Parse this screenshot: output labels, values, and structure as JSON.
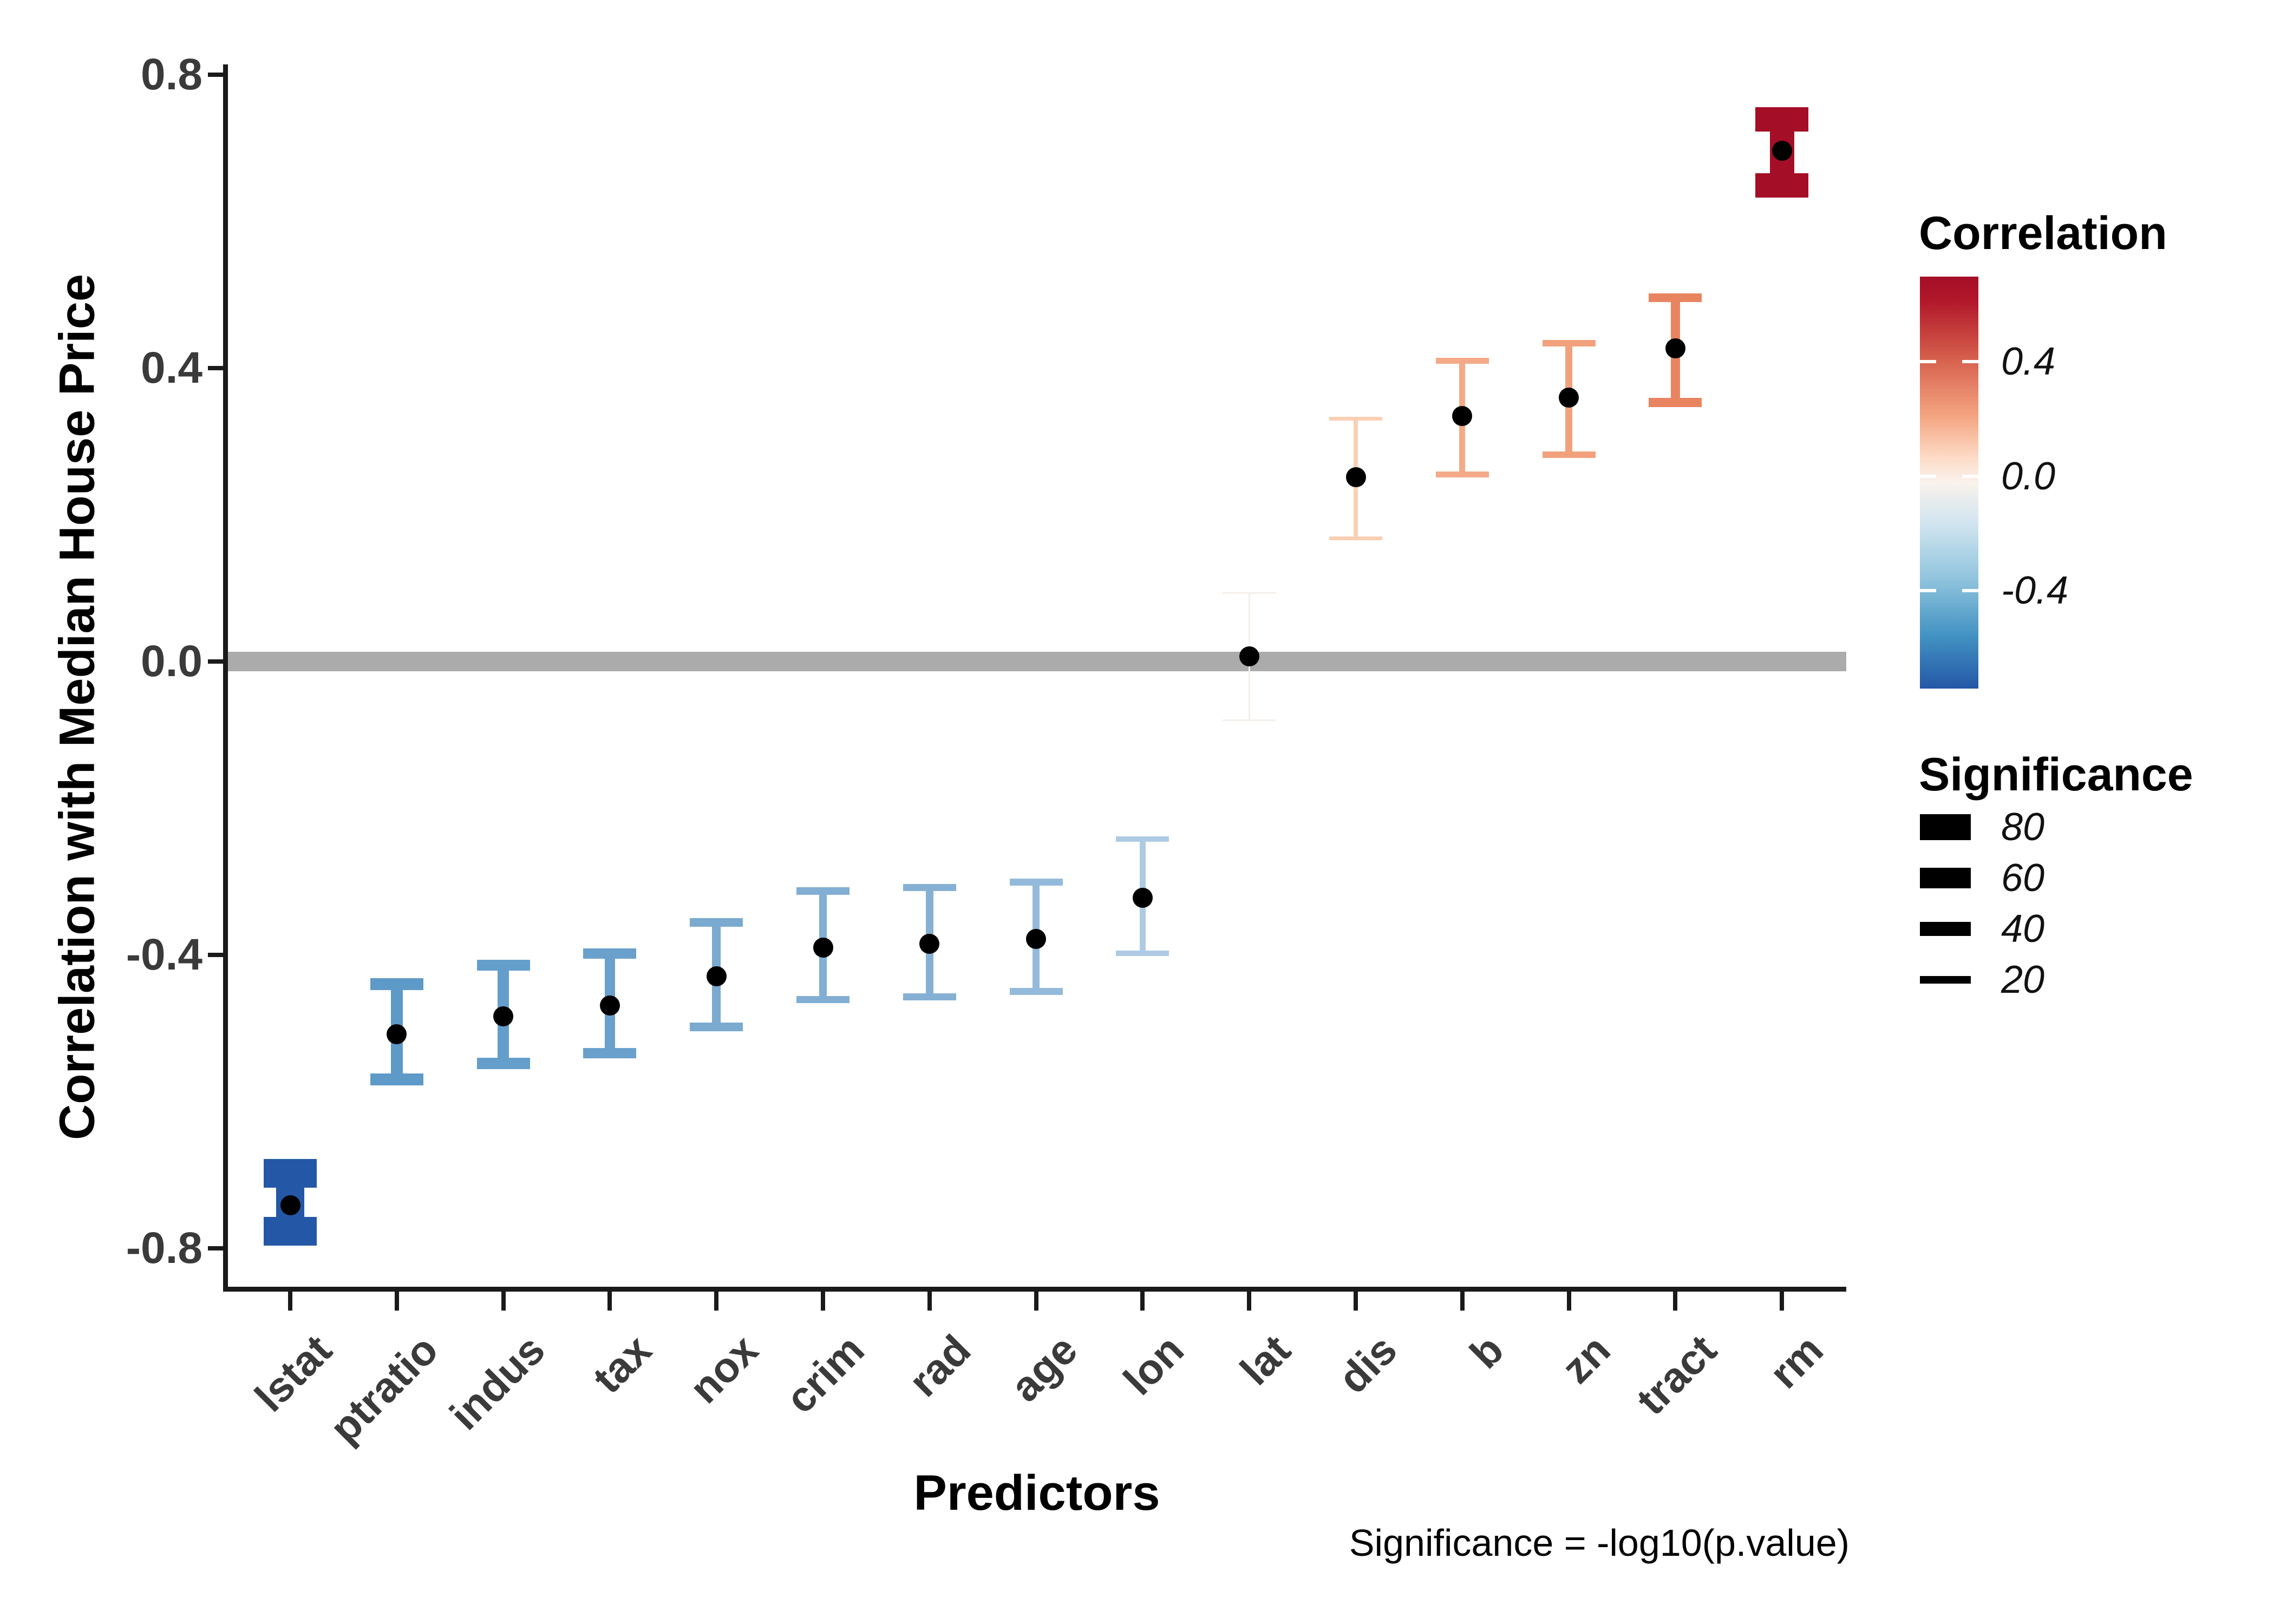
{
  "chart_data": {
    "type": "errorbar",
    "title": "",
    "ylabel": "Correlation with Median House Price",
    "xlabel": "Predictors",
    "caption": "Significance = -log10(p.value)",
    "categories": [
      "lstat",
      "ptratio",
      "indus",
      "tax",
      "nox",
      "crim",
      "rad",
      "age",
      "lon",
      "lat",
      "dis",
      "b",
      "zn",
      "tract",
      "rm"
    ],
    "series": [
      {
        "predictor": "lstat",
        "correlation": -0.741,
        "ci_low": -0.777,
        "ci_high": -0.698,
        "significance": 87.3,
        "color": "#2457A6"
      },
      {
        "predictor": "ptratio",
        "correlation": -0.508,
        "ci_low": -0.57,
        "ci_high": -0.44,
        "significance": 33.8,
        "color": "#5E9AC8"
      },
      {
        "predictor": "indus",
        "correlation": -0.484,
        "ci_low": -0.548,
        "ci_high": -0.414,
        "significance": 30.3,
        "color": "#649ECB"
      },
      {
        "predictor": "tax",
        "correlation": -0.469,
        "ci_low": -0.534,
        "ci_high": -0.398,
        "significance": 28.3,
        "color": "#69A0CC"
      },
      {
        "predictor": "nox",
        "correlation": -0.429,
        "ci_low": -0.498,
        "ci_high": -0.356,
        "significance": 23.2,
        "color": "#7AAAD0"
      },
      {
        "predictor": "crim",
        "correlation": -0.39,
        "ci_low": -0.461,
        "ci_high": -0.313,
        "significance": 18.7,
        "color": "#82AED3"
      },
      {
        "predictor": "rad",
        "correlation": -0.385,
        "ci_low": -0.457,
        "ci_high": -0.308,
        "significance": 18.3,
        "color": "#85B0D4"
      },
      {
        "predictor": "age",
        "correlation": -0.378,
        "ci_low": -0.45,
        "ci_high": -0.301,
        "significance": 17.8,
        "color": "#93BADA"
      },
      {
        "predictor": "lon",
        "correlation": -0.322,
        "ci_low": -0.398,
        "ci_high": -0.242,
        "significance": 12.9,
        "color": "#AECBE3"
      },
      {
        "predictor": "lat",
        "correlation": 0.007,
        "ci_low": -0.08,
        "ci_high": 0.093,
        "significance": 0.05,
        "color": "#F5EFE9"
      },
      {
        "predictor": "dis",
        "correlation": 0.251,
        "ci_low": 0.168,
        "ci_high": 0.331,
        "significance": 7.9,
        "color": "#FACFB4"
      },
      {
        "predictor": "b",
        "correlation": 0.335,
        "ci_low": 0.255,
        "ci_high": 0.41,
        "significance": 13.9,
        "color": "#F4AA88"
      },
      {
        "predictor": "zn",
        "correlation": 0.36,
        "ci_low": 0.282,
        "ci_high": 0.434,
        "significance": 16.2,
        "color": "#F2A17D"
      },
      {
        "predictor": "tract",
        "correlation": 0.427,
        "ci_low": 0.353,
        "ci_high": 0.496,
        "significance": 23.5,
        "color": "#E88560"
      },
      {
        "predictor": "rm",
        "correlation": 0.696,
        "ci_low": 0.649,
        "ci_high": 0.739,
        "significance": 73.6,
        "color": "#A50E27"
      }
    ],
    "y_axis": {
      "tick_values": [
        0.8,
        0.4,
        0.0,
        -0.4,
        -0.8
      ],
      "tick_labels": [
        "0.8",
        "0.4",
        "0.0",
        "-0.4",
        "-0.8"
      ],
      "min": -0.85,
      "max": 0.84
    },
    "zero_line": {
      "value": 0.0,
      "color": "#ABABAB"
    },
    "point_color": "#000000",
    "axis_color": "#1A1A1A",
    "tick_text_color": "#3A3A3A",
    "legend_correlation": {
      "title": "Correlation",
      "tick_labels": [
        "0.4",
        "0.0",
        "-0.4"
      ],
      "tick_values": [
        0.4,
        0.0,
        -0.4
      ],
      "bar_top_value": 0.696,
      "bar_bottom_value": -0.741,
      "gradient": [
        "#A50E27",
        "#B2182B",
        "#D6604D",
        "#F4A582",
        "#FDDBC7",
        "#F9F2EC",
        "#D1E5F0",
        "#92C5DE",
        "#4393C3",
        "#2457A6"
      ],
      "gradient_stops_pct": [
        0,
        6,
        20,
        34,
        44,
        50,
        60,
        73,
        87,
        100
      ]
    },
    "legend_significance": {
      "title": "Significance",
      "entries": [
        {
          "label": "80",
          "value": 80
        },
        {
          "label": "60",
          "value": 60
        },
        {
          "label": "40",
          "value": 40
        },
        {
          "label": "20",
          "value": 20
        }
      ],
      "swatch_color": "#000000"
    }
  }
}
